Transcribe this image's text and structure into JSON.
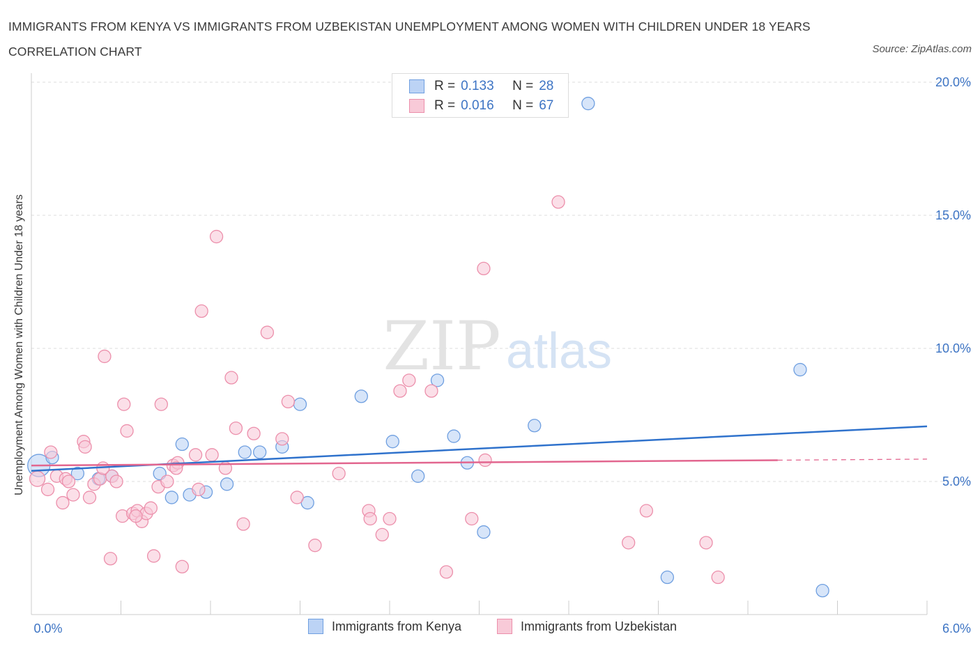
{
  "title": "IMMIGRANTS FROM KENYA VS IMMIGRANTS FROM UZBEKISTAN UNEMPLOYMENT AMONG WOMEN WITH CHILDREN UNDER 18 YEARS CORRELATION CHART",
  "source": "Source: ZipAtlas.com",
  "watermark": {
    "zip": "ZIP",
    "atlas": "atlas"
  },
  "legend": {
    "rows": [
      {
        "r_label": "R =",
        "r_value": "0.133",
        "n_label": "N =",
        "n_value": "28"
      },
      {
        "r_label": "R =",
        "r_value": "0.016",
        "n_label": "N =",
        "n_value": "67"
      }
    ]
  },
  "chart_data": {
    "type": "scatter",
    "xlabel": "",
    "ylabel": "Unemployment Among Women with Children Under 18 years",
    "xlim": [
      0,
      6
    ],
    "ylim": [
      0,
      20
    ],
    "x_tick_labels": [
      "0.0%",
      "6.0%"
    ],
    "y_ticks": [
      5,
      10,
      15,
      20
    ],
    "y_tick_labels": [
      "5.0%",
      "10.0%",
      "15.0%",
      "20.0%"
    ],
    "grid": "horizontal dashed",
    "series": [
      {
        "name": "Immigrants from Kenya",
        "color": "#6f9fe0",
        "fill": "#bcd3f5",
        "R": 0.133,
        "N": 28,
        "trend": {
          "x": [
            0.0,
            6.0
          ],
          "y": [
            5.4,
            7.07
          ]
        },
        "points": [
          [
            0.05,
            5.6
          ],
          [
            0.31,
            5.3
          ],
          [
            0.45,
            5.1
          ],
          [
            0.54,
            5.2
          ],
          [
            0.86,
            5.3
          ],
          [
            0.94,
            4.4
          ],
          [
            1.01,
            6.4
          ],
          [
            1.06,
            4.5
          ],
          [
            1.17,
            4.6
          ],
          [
            1.31,
            4.9
          ],
          [
            1.43,
            6.1
          ],
          [
            1.53,
            6.1
          ],
          [
            1.68,
            6.3
          ],
          [
            1.8,
            7.9
          ],
          [
            1.85,
            4.2
          ],
          [
            2.21,
            8.2
          ],
          [
            2.42,
            6.5
          ],
          [
            2.59,
            5.2
          ],
          [
            2.72,
            8.8
          ],
          [
            2.83,
            6.7
          ],
          [
            2.92,
            5.7
          ],
          [
            3.03,
            3.1
          ],
          [
            3.37,
            7.1
          ],
          [
            3.73,
            19.2
          ],
          [
            4.26,
            1.4
          ],
          [
            5.15,
            9.2
          ],
          [
            5.3,
            0.9
          ],
          [
            0.14,
            5.9
          ]
        ]
      },
      {
        "name": "Immigrants from Uzbekistan",
        "color": "#ec8fab",
        "fill": "#f8cad8",
        "R": 0.016,
        "N": 67,
        "trend": {
          "x": [
            0.0,
            5.0
          ],
          "y": [
            5.6,
            5.8
          ]
        },
        "trend_dashed": {
          "x": [
            5.0,
            6.0
          ],
          "y": [
            5.8,
            5.84
          ]
        },
        "points": [
          [
            0.04,
            5.1
          ],
          [
            0.11,
            4.7
          ],
          [
            0.13,
            6.1
          ],
          [
            0.17,
            5.2
          ],
          [
            0.21,
            4.2
          ],
          [
            0.23,
            5.1
          ],
          [
            0.25,
            5.0
          ],
          [
            0.28,
            4.5
          ],
          [
            0.35,
            6.5
          ],
          [
            0.36,
            6.3
          ],
          [
            0.39,
            4.4
          ],
          [
            0.42,
            4.9
          ],
          [
            0.46,
            5.1
          ],
          [
            0.49,
            9.7
          ],
          [
            0.53,
            2.1
          ],
          [
            0.54,
            5.2
          ],
          [
            0.57,
            5.0
          ],
          [
            0.61,
            3.7
          ],
          [
            0.62,
            7.9
          ],
          [
            0.64,
            6.9
          ],
          [
            0.68,
            3.8
          ],
          [
            0.71,
            3.9
          ],
          [
            0.74,
            3.5
          ],
          [
            0.77,
            3.8
          ],
          [
            0.8,
            4.0
          ],
          [
            0.82,
            2.2
          ],
          [
            0.85,
            4.8
          ],
          [
            0.87,
            7.9
          ],
          [
            0.91,
            5.0
          ],
          [
            0.95,
            5.6
          ],
          [
            0.98,
            5.7
          ],
          [
            1.01,
            1.8
          ],
          [
            1.1,
            6.0
          ],
          [
            1.12,
            4.7
          ],
          [
            1.14,
            11.4
          ],
          [
            1.21,
            6.0
          ],
          [
            1.24,
            14.2
          ],
          [
            1.3,
            5.5
          ],
          [
            1.34,
            8.9
          ],
          [
            1.37,
            7.0
          ],
          [
            1.42,
            3.4
          ],
          [
            1.49,
            6.8
          ],
          [
            1.58,
            10.6
          ],
          [
            1.68,
            6.6
          ],
          [
            1.72,
            8.0
          ],
          [
            1.78,
            4.4
          ],
          [
            1.9,
            2.6
          ],
          [
            2.06,
            5.3
          ],
          [
            2.26,
            3.9
          ],
          [
            2.35,
            3.0
          ],
          [
            2.4,
            3.6
          ],
          [
            2.47,
            8.4
          ],
          [
            2.53,
            8.8
          ],
          [
            2.68,
            8.4
          ],
          [
            2.78,
            1.6
          ],
          [
            2.95,
            3.6
          ],
          [
            3.03,
            13.0
          ],
          [
            3.04,
            5.8
          ],
          [
            3.53,
            15.5
          ],
          [
            4.0,
            2.7
          ],
          [
            4.12,
            3.9
          ],
          [
            4.52,
            2.7
          ],
          [
            4.6,
            1.4
          ],
          [
            2.27,
            3.6
          ],
          [
            0.7,
            3.7
          ],
          [
            0.48,
            5.5
          ],
          [
            0.97,
            5.5
          ]
        ]
      }
    ]
  }
}
